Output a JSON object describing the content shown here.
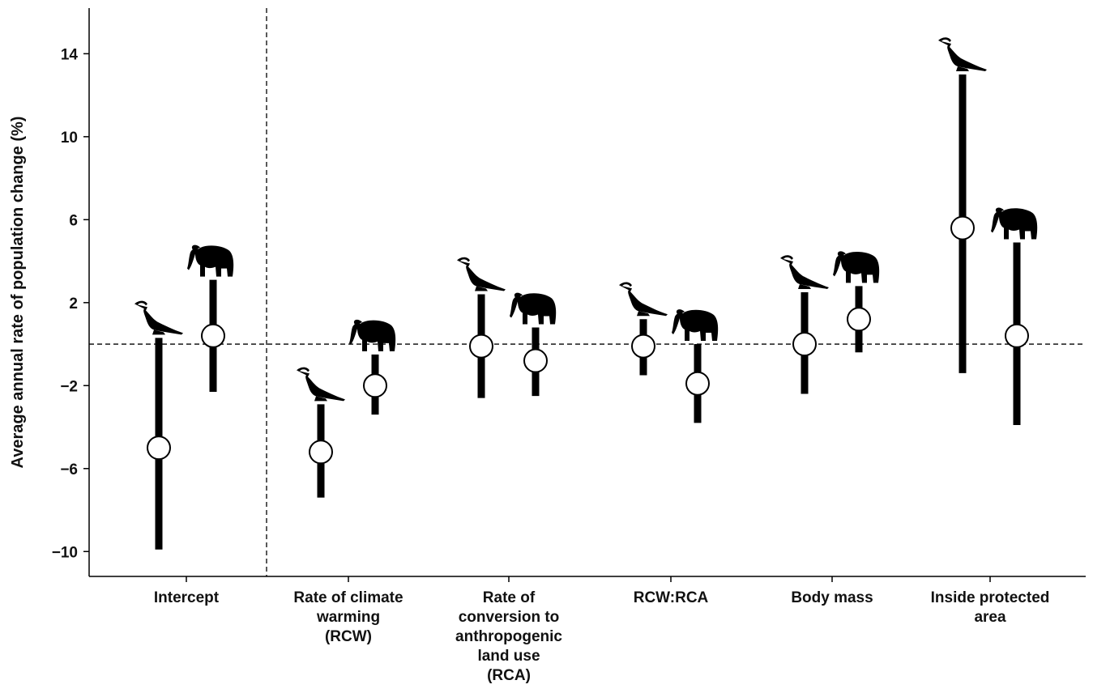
{
  "chart_data": {
    "type": "scatter",
    "ylabel": "Average annual rate of population change (%)",
    "yticks": [
      "14",
      "10",
      "6",
      "2",
      "−2",
      "−6",
      "−10"
    ],
    "ytick_values": [
      14,
      10,
      6,
      2,
      -2,
      -6,
      -10
    ],
    "ylim": [
      -11.2,
      16.2
    ],
    "reference_line_y": 0,
    "categories": [
      {
        "lines": [
          "Intercept"
        ]
      },
      {
        "lines": [
          "Rate of climate",
          "warming",
          "(RCW)"
        ]
      },
      {
        "lines": [
          "Rate of",
          "conversion to",
          "anthropogenic",
          "land use",
          "(RCA)"
        ]
      },
      {
        "lines": [
          "RCW:RCA"
        ]
      },
      {
        "lines": [
          "Body mass"
        ]
      },
      {
        "lines": [
          "Inside protected",
          "area"
        ]
      }
    ],
    "series": [
      {
        "icon": "bird-icon",
        "points": [
          {
            "estimate": -5.0,
            "low": -9.9,
            "high": 0.3
          },
          {
            "estimate": -5.2,
            "low": -7.4,
            "high": -2.9
          },
          {
            "estimate": -0.1,
            "low": -2.6,
            "high": 2.4
          },
          {
            "estimate": -0.1,
            "low": -1.5,
            "high": 1.2
          },
          {
            "estimate": 0.0,
            "low": -2.4,
            "high": 2.5
          },
          {
            "estimate": 5.6,
            "low": -1.4,
            "high": 13.0
          }
        ]
      },
      {
        "icon": "elephant-icon",
        "points": [
          {
            "estimate": 0.4,
            "low": -2.3,
            "high": 3.1
          },
          {
            "estimate": -2.0,
            "low": -3.4,
            "high": -0.5
          },
          {
            "estimate": -0.8,
            "low": -2.5,
            "high": 0.8
          },
          {
            "estimate": -1.9,
            "low": -3.8,
            "high": 0.0
          },
          {
            "estimate": 1.2,
            "low": -0.4,
            "high": 2.8
          },
          {
            "estimate": 0.4,
            "low": -3.9,
            "high": 4.9
          }
        ]
      }
    ]
  }
}
